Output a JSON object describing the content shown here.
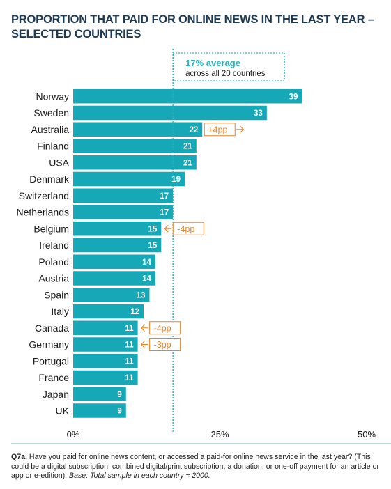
{
  "title": "PROPORTION THAT PAID FOR ONLINE NEWS IN THE LAST YEAR – SELECTED COUNTRIES",
  "average": {
    "value_label": "17%",
    "value_suffix": "average",
    "subtext": "across all 20 countries",
    "value": 17
  },
  "footnote": {
    "q": "Q7a.",
    "text": " Have you paid for online news content, or accessed a paid-for online news service in the last year? (This could be a digital subscription, combined digital/print subscription, a donation, or one-off payment for an article or app or e-edition). ",
    "base": "Base: Total sample in each country ≈ 2000."
  },
  "colors": {
    "bar": "#17a8b8",
    "accent": "#e8822a",
    "title": "#1d3a55",
    "avg": "#24b3c0"
  },
  "chart_data": {
    "type": "bar",
    "orientation": "horizontal",
    "categories": [
      "Norway",
      "Sweden",
      "Australia",
      "Finland",
      "USA",
      "Denmark",
      "Switzerland",
      "Netherlands",
      "Belgium",
      "Ireland",
      "Poland",
      "Austria",
      "Spain",
      "Italy",
      "Canada",
      "Germany",
      "Portugal",
      "France",
      "Japan",
      "UK"
    ],
    "values": [
      39,
      33,
      22,
      21,
      21,
      19,
      17,
      17,
      15,
      15,
      14,
      14,
      13,
      12,
      11,
      11,
      11,
      11,
      9,
      9
    ],
    "xlim": [
      0,
      50
    ],
    "xticks": [
      "0%",
      "25%",
      "50%"
    ],
    "xtick_values": [
      0,
      25,
      50
    ],
    "reference_line": 17,
    "annotations": [
      {
        "category": "Australia",
        "text": "+4pp",
        "direction": "right"
      },
      {
        "category": "Belgium",
        "text": "-4pp",
        "direction": "left"
      },
      {
        "category": "Canada",
        "text": "-4pp",
        "direction": "left"
      },
      {
        "category": "Germany",
        "text": "-3pp",
        "direction": "left"
      }
    ]
  }
}
